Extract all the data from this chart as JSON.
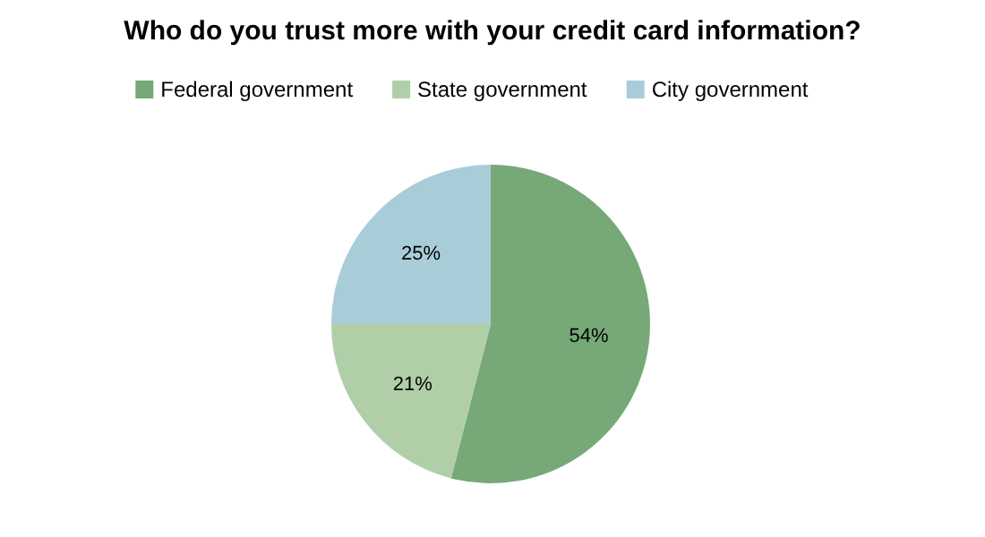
{
  "chart_data": {
    "type": "pie",
    "title": "Who do you trust more with your credit card information?",
    "categories": [
      "Federal government",
      "State government",
      "City government"
    ],
    "values": [
      54,
      21,
      25
    ],
    "colors": [
      "#76a878",
      "#b0cfa8",
      "#a8cdd8"
    ],
    "value_labels": [
      "54%",
      "21%",
      "25%"
    ],
    "legend": "top"
  }
}
